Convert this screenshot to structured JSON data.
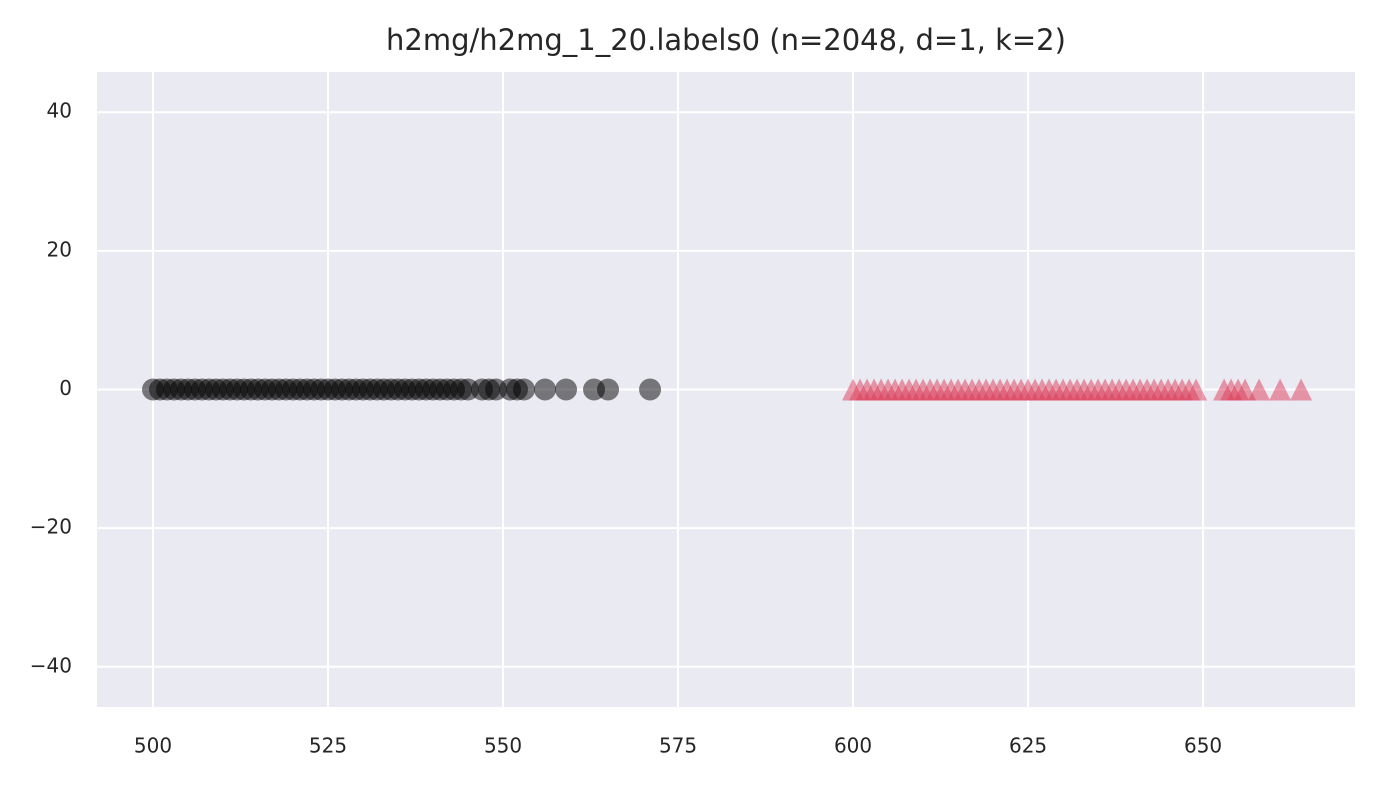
{
  "chart_data": {
    "type": "scatter",
    "title": "h2mg/h2mg_1_20.labels0 (n=2048, d=1, k=2)",
    "xlim": [
      492,
      671.7
    ],
    "xticks": [
      500,
      525,
      550,
      575,
      600,
      625,
      650
    ],
    "ylim": [
      -45.8,
      45.8
    ],
    "yticks": [
      {
        "value": -40,
        "label": "−40"
      },
      {
        "value": -20,
        "label": "−20"
      },
      0,
      20,
      40
    ],
    "grid": true,
    "series": [
      {
        "color": "#000000",
        "alpha": 0.5,
        "marker": "circle",
        "x": [
          500,
          501,
          502,
          503,
          504,
          505,
          506,
          507,
          508,
          509,
          510,
          511,
          512,
          513,
          514,
          515,
          516,
          517,
          518,
          519,
          520,
          521,
          522,
          523,
          524,
          525,
          526,
          527,
          528,
          529,
          530,
          531,
          532,
          533,
          534,
          535,
          536,
          537,
          538,
          539,
          540,
          541,
          542,
          543,
          544,
          545,
          547,
          548,
          549,
          551,
          552,
          553,
          556,
          559,
          563,
          565,
          571
        ],
        "values": [
          0,
          0,
          0,
          0,
          0,
          0,
          0,
          0,
          0,
          0,
          0,
          0,
          0,
          0,
          0,
          0,
          0,
          0,
          0,
          0,
          0,
          0,
          0,
          0,
          0,
          0,
          0,
          0,
          0,
          0,
          0,
          0,
          0,
          0,
          0,
          0,
          0,
          0,
          0,
          0,
          0,
          0,
          0,
          0,
          0,
          0,
          0,
          0,
          0,
          0,
          0,
          0,
          0,
          0,
          0,
          0,
          0
        ]
      },
      {
        "color": "#dc3c57",
        "alpha": 0.5,
        "marker": "triangle",
        "x": [
          600,
          601,
          602,
          603,
          604,
          605,
          606,
          607,
          608,
          609,
          610,
          611,
          612,
          613,
          614,
          615,
          616,
          617,
          618,
          619,
          620,
          621,
          622,
          623,
          624,
          625,
          626,
          627,
          628,
          629,
          630,
          631,
          632,
          633,
          634,
          635,
          636,
          637,
          638,
          639,
          640,
          641,
          642,
          643,
          644,
          645,
          646,
          647,
          648,
          649,
          653,
          654,
          655,
          656,
          658,
          661,
          664
        ],
        "values": [
          0,
          0,
          0,
          0,
          0,
          0,
          0,
          0,
          0,
          0,
          0,
          0,
          0,
          0,
          0,
          0,
          0,
          0,
          0,
          0,
          0,
          0,
          0,
          0,
          0,
          0,
          0,
          0,
          0,
          0,
          0,
          0,
          0,
          0,
          0,
          0,
          0,
          0,
          0,
          0,
          0,
          0,
          0,
          0,
          0,
          0,
          0,
          0,
          0,
          0,
          0,
          0,
          0,
          0,
          0,
          0,
          0
        ]
      }
    ]
  }
}
